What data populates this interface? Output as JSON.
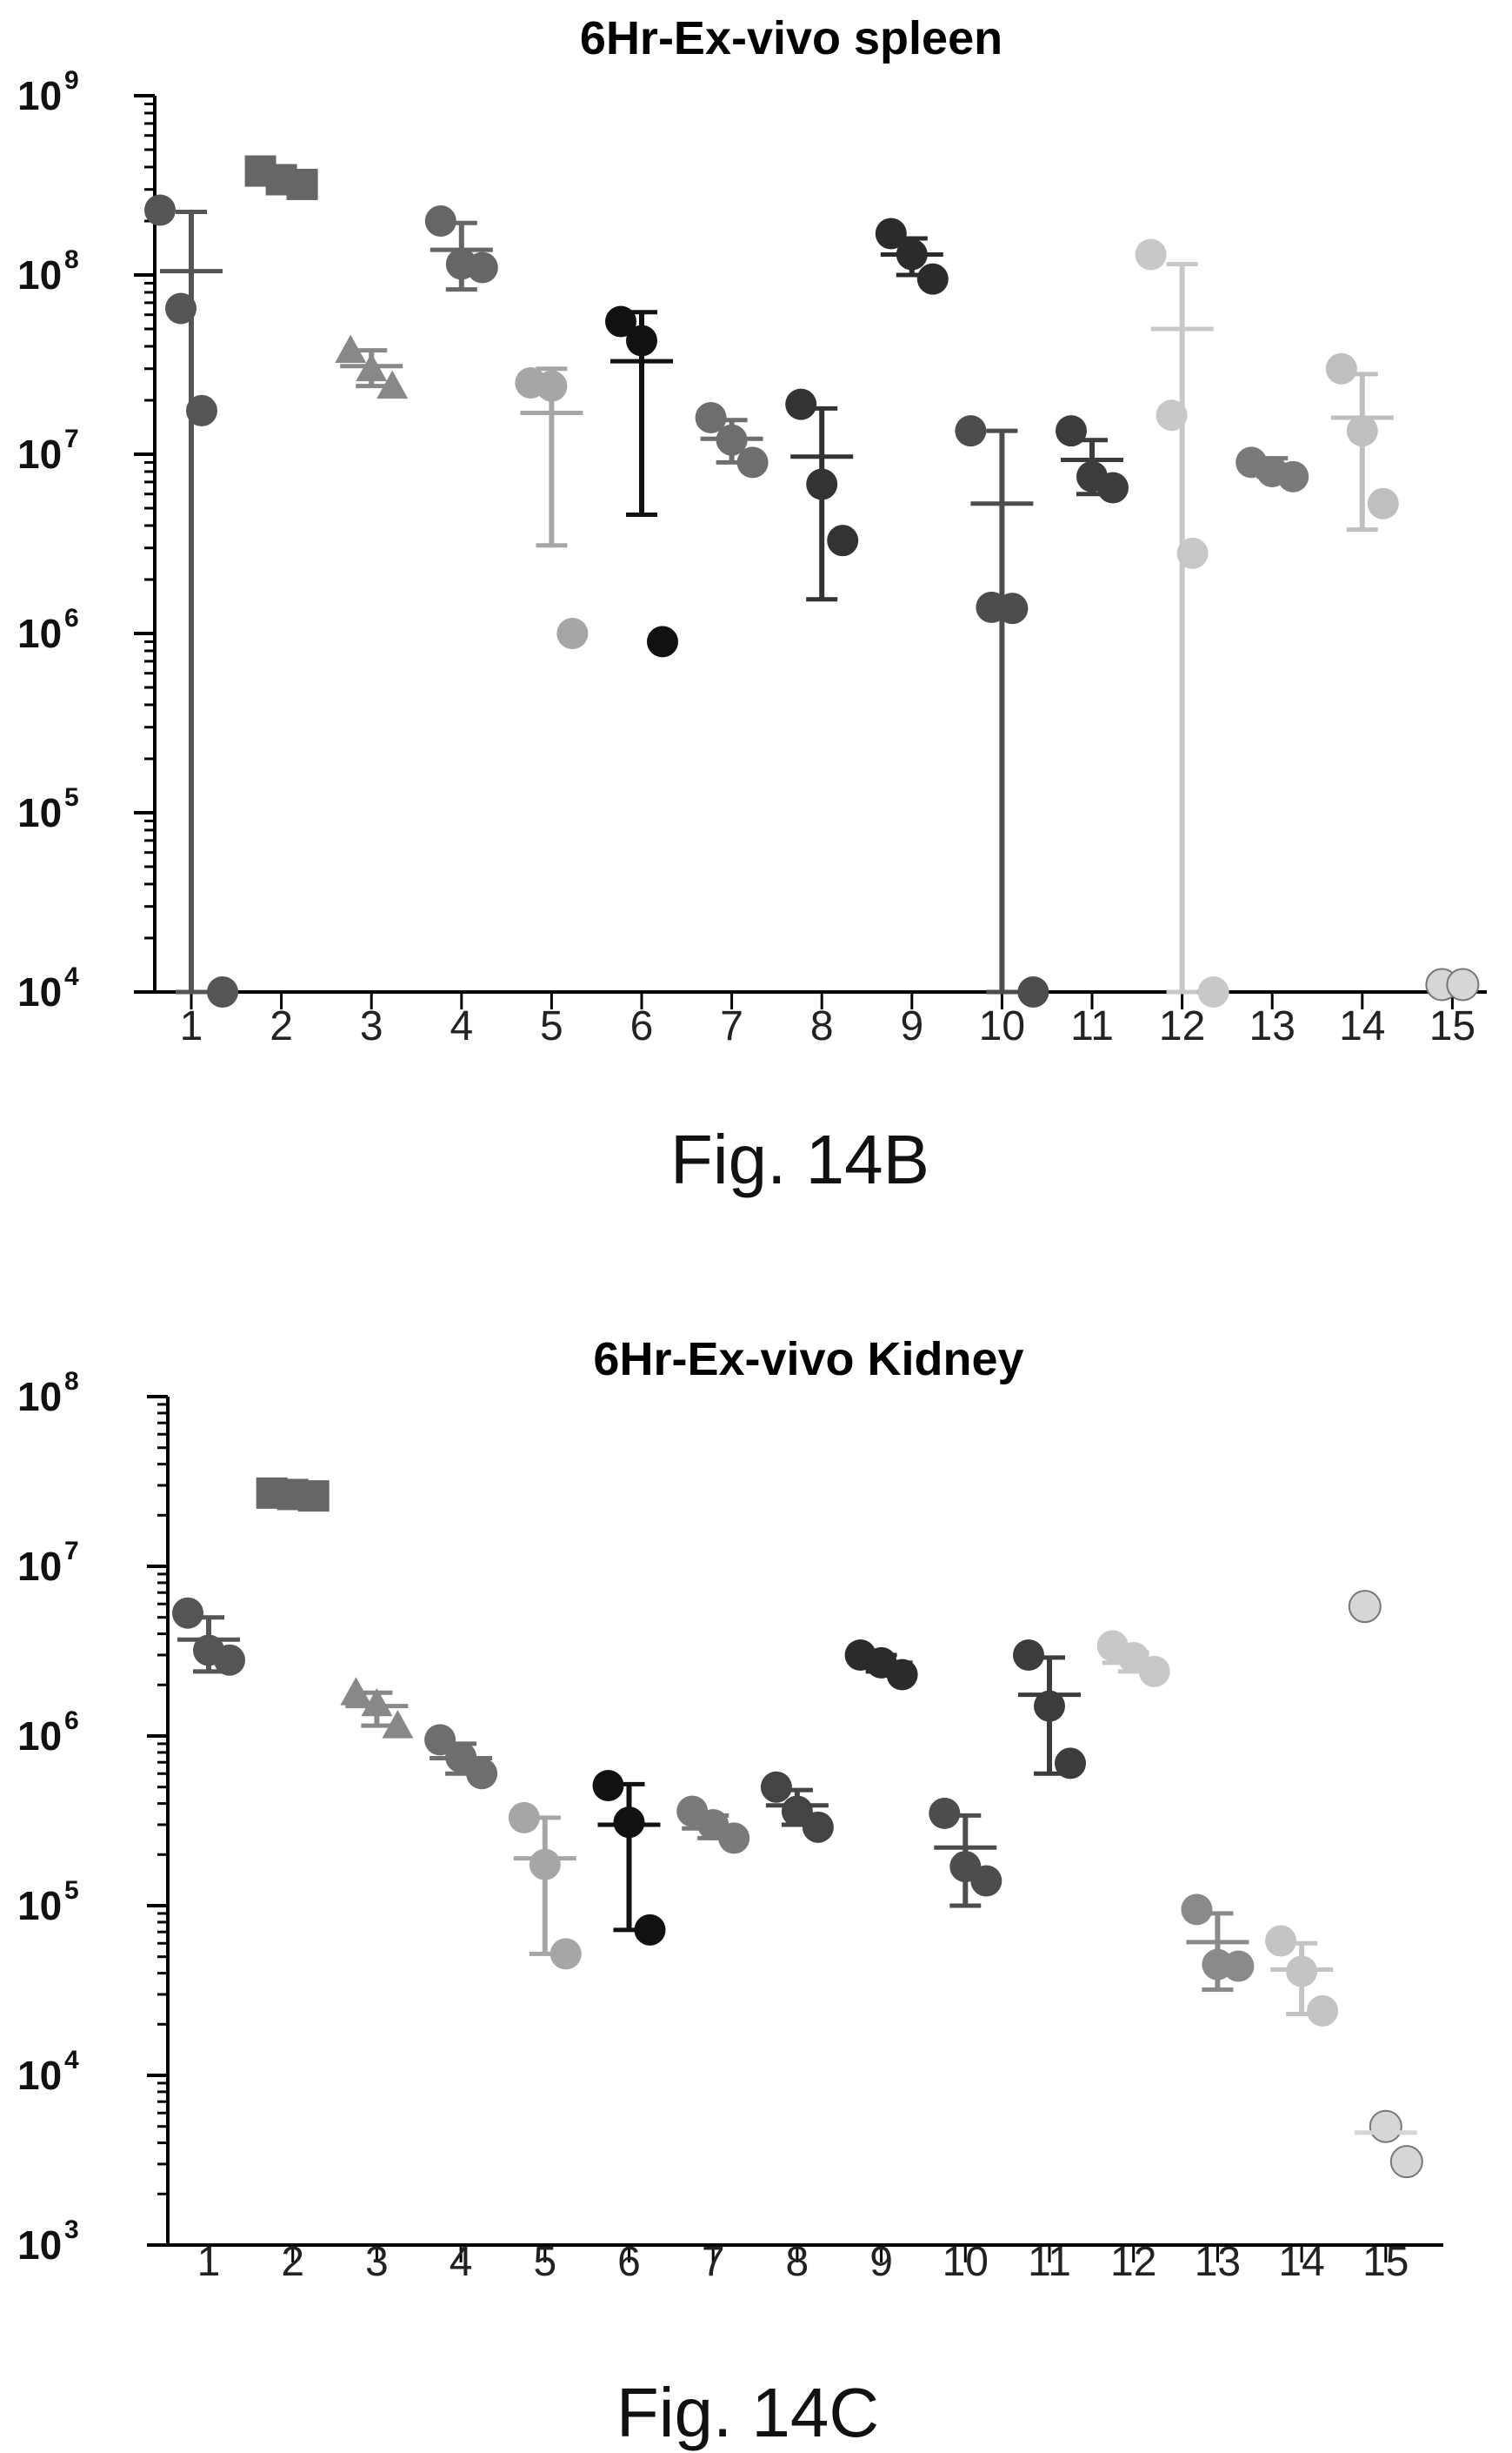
{
  "chart_data": [
    {
      "type": "scatter",
      "title": "6Hr-Ex-vivo spleen",
      "caption": "Fig. 14B",
      "xlabel": "",
      "ylabel": "",
      "yscale": "log",
      "ylim": [
        10000,
        1000000000
      ],
      "y_ticks": [
        {
          "base": "10",
          "exp": "4"
        },
        {
          "base": "10",
          "exp": "5"
        },
        {
          "base": "10",
          "exp": "6"
        },
        {
          "base": "10",
          "exp": "7"
        },
        {
          "base": "10",
          "exp": "8"
        },
        {
          "base": "10",
          "exp": "9"
        }
      ],
      "categories": [
        "1",
        "2",
        "3",
        "4",
        "5",
        "6",
        "7",
        "8",
        "9",
        "10",
        "11",
        "12",
        "13",
        "14",
        "15"
      ],
      "groups": [
        {
          "points": [
            230000000,
            65000000,
            17500000,
            10000
          ],
          "mean": 105000000,
          "err": [
            10000,
            225000000
          ],
          "marker": "circle",
          "color": "#555555"
        },
        {
          "points": [
            380000000,
            340000000,
            320000000
          ],
          "mean": 345000000,
          "err": [
            320000000,
            370000000
          ],
          "marker": "square",
          "color": "#666666"
        },
        {
          "points": [
            38000000,
            30000000,
            24000000
          ],
          "mean": 31000000,
          "err": [
            24000000,
            38000000
          ],
          "marker": "triangle",
          "color": "#888888"
        },
        {
          "points": [
            200000000,
            115000000,
            110000000
          ],
          "mean": 138000000,
          "err": [
            83000000,
            195000000
          ],
          "marker": "circle",
          "color": "#666666"
        },
        {
          "points": [
            25000000,
            24000000,
            1000000
          ],
          "mean": 17000000,
          "err": [
            3100000,
            30000000
          ],
          "marker": "circle",
          "color": "#a6a6a6"
        },
        {
          "points": [
            55000000,
            43000000,
            900000
          ],
          "mean": 33000000,
          "err": [
            4600000,
            62000000
          ],
          "marker": "circle",
          "color": "#111111"
        },
        {
          "points": [
            16000000,
            12000000,
            9000000
          ],
          "mean": 12200000,
          "err": [
            9000000,
            15500000
          ],
          "marker": "circle",
          "color": "#6e6e6e"
        },
        {
          "points": [
            19000000,
            6800000,
            3300000
          ],
          "mean": 9700000,
          "err": [
            1550000,
            18000000
          ],
          "marker": "circle",
          "color": "#333333"
        },
        {
          "points": [
            170000000,
            130000000,
            95000000
          ],
          "mean": 130000000,
          "err": [
            100000000,
            160000000
          ],
          "marker": "circle",
          "color": "#2b2b2b"
        },
        {
          "points": [
            13500000,
            1400000,
            1380000,
            10000
          ],
          "mean": 5300000,
          "err": [
            10000,
            13500000
          ],
          "marker": "circle",
          "color": "#4d4d4d"
        },
        {
          "points": [
            13500000,
            7500000,
            6500000
          ],
          "mean": 9300000,
          "err": [
            6000000,
            12000000
          ],
          "marker": "circle",
          "color": "#3c3c3c"
        },
        {
          "points": [
            130000000,
            16500000,
            2800000,
            10000
          ],
          "mean": 50000000,
          "err": [
            10000,
            115000000
          ],
          "marker": "circle",
          "color": "#c8c8c8"
        },
        {
          "points": [
            9000000,
            8000000,
            7500000
          ],
          "mean": 8500000,
          "err": [
            7500000,
            9500000
          ],
          "marker": "circle",
          "color": "#7a7a7a"
        },
        {
          "points": [
            30000000,
            13500000,
            5300000
          ],
          "mean": 16000000,
          "err": [
            3800000,
            28000000
          ],
          "marker": "circle",
          "color": "#bfbfbf"
        },
        {
          "points": [
            11000,
            11000
          ],
          "mean": null,
          "err": null,
          "marker": "circle",
          "color": "#d6d6d6"
        }
      ]
    },
    {
      "type": "scatter",
      "title": "6Hr-Ex-vivo Kidney",
      "caption": "Fig. 14C",
      "xlabel": "",
      "ylabel": "",
      "yscale": "log",
      "ylim": [
        1000,
        100000000
      ],
      "y_ticks": [
        {
          "base": "10",
          "exp": "3"
        },
        {
          "base": "10",
          "exp": "4"
        },
        {
          "base": "10",
          "exp": "5"
        },
        {
          "base": "10",
          "exp": "6"
        },
        {
          "base": "10",
          "exp": "7"
        },
        {
          "base": "10",
          "exp": "8"
        }
      ],
      "categories": [
        "1",
        "2",
        "3",
        "4",
        "5",
        "6",
        "7",
        "8",
        "9",
        "10",
        "11",
        "12",
        "13",
        "14",
        "15"
      ],
      "groups": [
        {
          "points": [
            5300000,
            3200000,
            2800000
          ],
          "mean": 3700000,
          "err": [
            2400000,
            5000000
          ],
          "marker": "circle",
          "color": "#555555"
        },
        {
          "points": [
            27000000,
            26500000,
            26000000
          ],
          "mean": 26500000,
          "err": [
            26000000,
            27500000
          ],
          "marker": "square",
          "color": "#666666"
        },
        {
          "points": [
            1800000,
            1550000,
            1150000
          ],
          "mean": 1500000,
          "err": [
            1150000,
            1800000
          ],
          "marker": "triangle",
          "color": "#888888"
        },
        {
          "points": [
            950000,
            750000,
            600000
          ],
          "mean": 740000,
          "err": [
            600000,
            900000
          ],
          "marker": "circle",
          "color": "#6e6e6e"
        },
        {
          "points": [
            330000,
            175000,
            52000
          ],
          "mean": 190000,
          "err": [
            52000,
            330000
          ],
          "marker": "circle",
          "color": "#a6a6a6"
        },
        {
          "points": [
            510000,
            310000,
            72000
          ],
          "mean": 300000,
          "err": [
            72000,
            520000
          ],
          "marker": "circle",
          "color": "#111111"
        },
        {
          "points": [
            360000,
            300000,
            250000
          ],
          "mean": 285000,
          "err": [
            250000,
            340000
          ],
          "marker": "circle",
          "color": "#7a7a7a"
        },
        {
          "points": [
            500000,
            360000,
            290000
          ],
          "mean": 390000,
          "err": [
            300000,
            480000
          ],
          "marker": "circle",
          "color": "#444444"
        },
        {
          "points": [
            3000000,
            2700000,
            2300000
          ],
          "mean": 2700000,
          "err": [
            2400000,
            3000000
          ],
          "marker": "circle",
          "color": "#2b2b2b"
        },
        {
          "points": [
            350000,
            170000,
            140000
          ],
          "mean": 220000,
          "err": [
            100000,
            340000
          ],
          "marker": "circle",
          "color": "#4d4d4d"
        },
        {
          "points": [
            3000000,
            1500000,
            690000
          ],
          "mean": 1750000,
          "err": [
            600000,
            2900000
          ],
          "marker": "circle",
          "color": "#3c3c3c"
        },
        {
          "points": [
            3400000,
            2900000,
            2400000
          ],
          "mean": 2700000,
          "err": [
            2400000,
            3100000
          ],
          "marker": "circle",
          "color": "#c8c8c8"
        },
        {
          "points": [
            95000,
            45000,
            44000
          ],
          "mean": 61000,
          "err": [
            32000,
            90000
          ],
          "marker": "circle",
          "color": "#8a8a8a"
        },
        {
          "points": [
            62000,
            41000,
            24000
          ],
          "mean": 42000,
          "err": [
            23000,
            60000
          ],
          "marker": "circle",
          "color": "#c4c4c4"
        },
        {
          "points": [
            5800000,
            5000,
            3100
          ],
          "mean": 4600,
          "err": null,
          "marker": "circle",
          "color": "#d6d6d6"
        }
      ]
    }
  ]
}
